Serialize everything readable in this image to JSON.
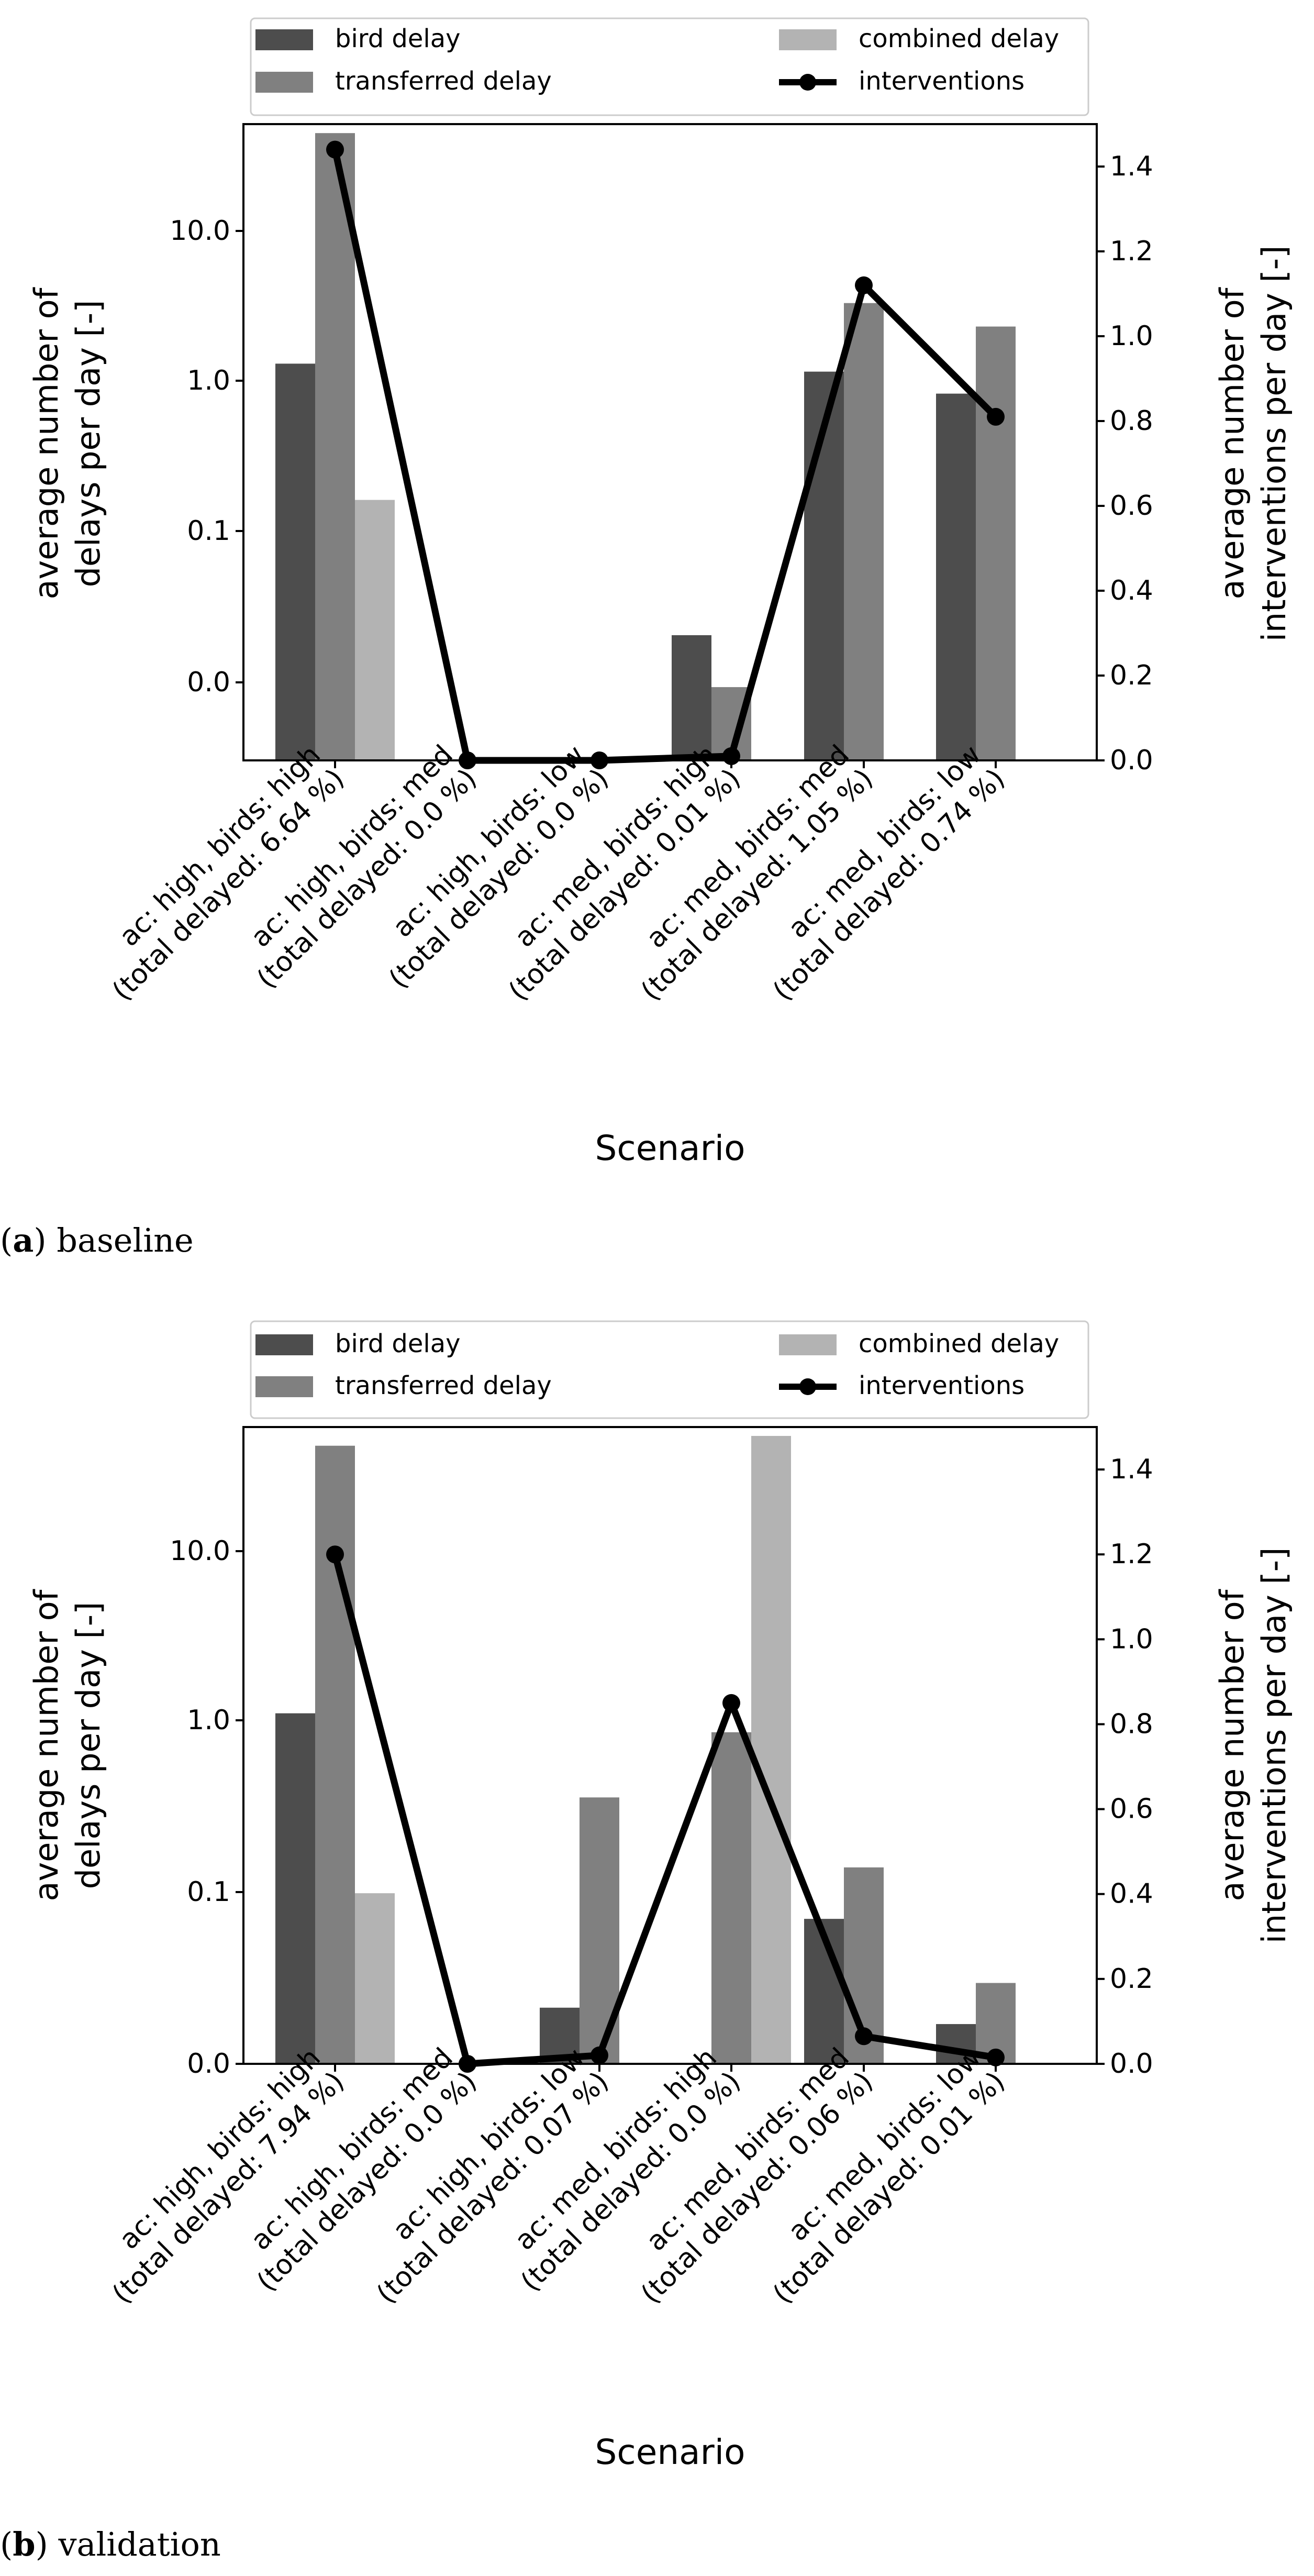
{
  "legend": {
    "bird": "bird delay",
    "transferred": "transferred delay",
    "combined": "combined delay",
    "interventions": "interventions"
  },
  "colors": {
    "bird": "#4d4d4d",
    "transferred": "#808080",
    "combined": "#b3b3b3",
    "line": "#000000"
  },
  "chart_data": [
    {
      "type": "bar",
      "caption_letter": "a",
      "caption_text": "baseline",
      "xlabel": "Scenario",
      "ylabel_left": [
        "average number of",
        "delays per day [-]"
      ],
      "ylabel_right": [
        "average number of",
        "interventions per day [-]"
      ],
      "y_left_ticks": [
        "0.0",
        "0.1",
        "1.0",
        "10.0"
      ],
      "y_right_ticks": [
        "0.0",
        "0.2",
        "0.4",
        "0.6",
        "0.8",
        "1.0",
        "1.2",
        "1.4"
      ],
      "y_right_lim": [
        0,
        1.5
      ],
      "categories": [
        [
          "ac: high, birds: high",
          "(total delayed: 6.64 %)"
        ],
        [
          "ac: high, birds: med",
          "(total delayed: 0.0 %)"
        ],
        [
          "ac: high, birds: low",
          "(total delayed: 0.0 %)"
        ],
        [
          "ac: med, birds: high",
          "(total delayed: 0.01 %)"
        ],
        [
          "ac: med, birds: med",
          "(total delayed: 1.05 %)"
        ],
        [
          "ac: med, birds: low",
          "(total delayed: 0.74 %)"
        ]
      ],
      "series": [
        {
          "name": "bird delay",
          "values": [
            1.3,
            0,
            0,
            0.02,
            1.15,
            0.82
          ]
        },
        {
          "name": "transferred delay",
          "values": [
            45,
            0,
            0,
            0.009,
            3.3,
            2.3
          ]
        },
        {
          "name": "combined delay",
          "values": [
            0.16,
            0,
            0,
            0,
            0,
            0
          ]
        }
      ],
      "interventions": [
        1.44,
        0.0,
        0.0,
        0.01,
        1.12,
        0.81
      ]
    },
    {
      "type": "bar",
      "caption_letter": "b",
      "caption_text": "validation",
      "xlabel": "Scenario",
      "ylabel_left": [
        "average number of",
        "delays per day [-]"
      ],
      "ylabel_right": [
        "average number of",
        "interventions per day [-]"
      ],
      "y_left_ticks": [
        "0.0",
        "0.1",
        "1.0",
        "10.0"
      ],
      "y_right_ticks": [
        "0.0",
        "0.2",
        "0.4",
        "0.6",
        "0.8",
        "1.0",
        "1.2",
        "1.4"
      ],
      "y_right_lim": [
        0,
        1.5
      ],
      "categories": [
        [
          "ac: high, birds: high",
          "(total delayed: 7.94 %)"
        ],
        [
          "ac: high, birds: med",
          "(total delayed: 0.0 %)"
        ],
        [
          "ac: high, birds: low",
          "(total delayed: 0.07 %)"
        ],
        [
          "ac: med, birds: high",
          "(total delayed: 0.0 %)"
        ],
        [
          "ac: med, birds: med",
          "(total delayed: 0.06 %)"
        ],
        [
          "ac: med, birds: low",
          "(total delayed: 0.01 %)"
        ]
      ],
      "series": [
        {
          "name": "bird delay",
          "values": [
            1.1,
            0,
            0.02,
            0,
            0.067,
            0.016
          ]
        },
        {
          "name": "transferred delay",
          "values": [
            42,
            0,
            0.35,
            0.85,
            0.135,
            0.028
          ]
        },
        {
          "name": "combined delay",
          "values": [
            0.095,
            0,
            0,
            48,
            0,
            0
          ]
        }
      ],
      "interventions": [
        1.2,
        0.0,
        0.02,
        0.85,
        0.065,
        0.015
      ]
    }
  ]
}
